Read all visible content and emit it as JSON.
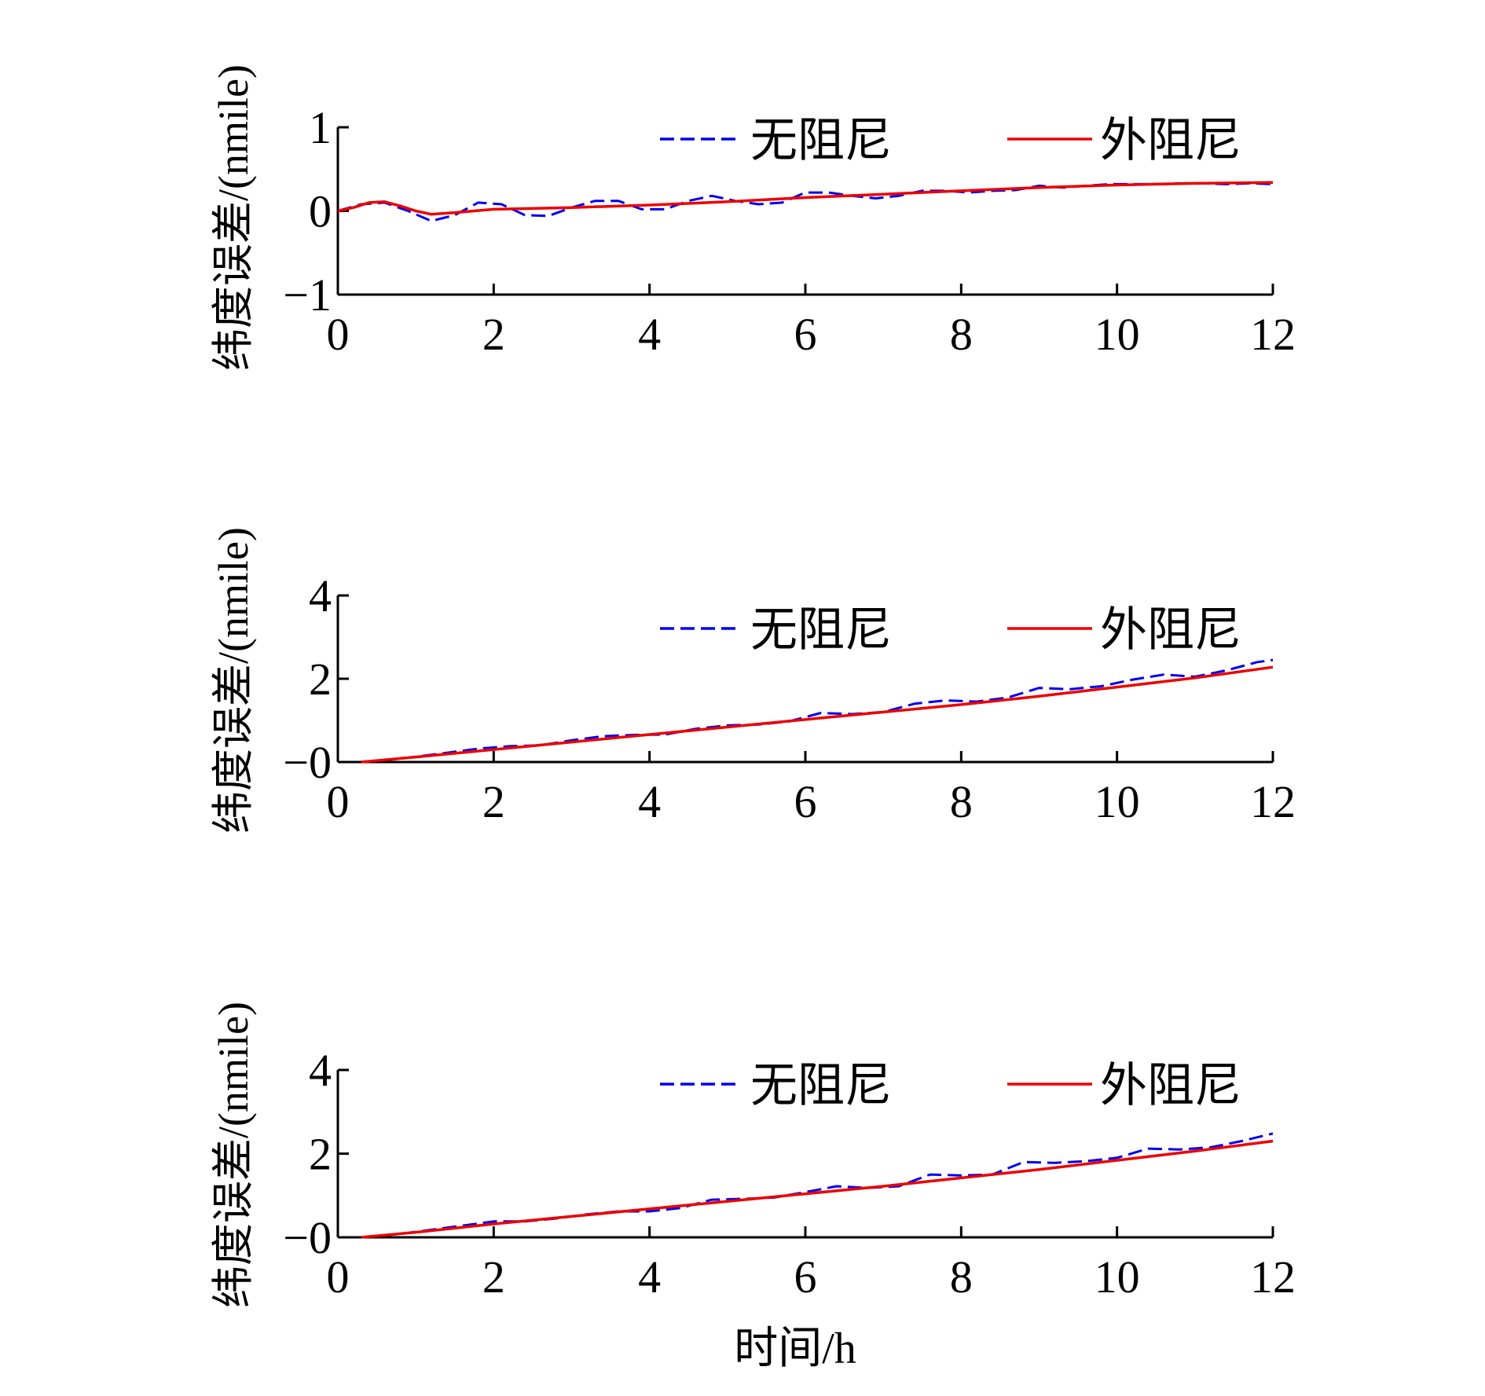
{
  "figure": {
    "xlabel": "时间/h"
  },
  "colors": {
    "damping_none": "#0000ee",
    "damping_outer": "#ee0000",
    "axis": "#000000"
  },
  "chart_data": [
    {
      "type": "line",
      "title": "",
      "xlabel": "",
      "ylabel": "纬度误差/(nmile)",
      "xlim": [
        0,
        12
      ],
      "ylim": [
        -1,
        1
      ],
      "xticks": [
        0,
        2,
        4,
        6,
        8,
        10,
        12
      ],
      "xtick_labels": [
        "0",
        "2",
        "4",
        "6",
        "8",
        "10",
        "12"
      ],
      "yticks": [
        -1,
        0,
        1
      ],
      "ytick_labels": [
        "−1",
        "0",
        "1"
      ],
      "legend": "top-right",
      "grid": false,
      "series": [
        {
          "name": "无阻尼",
          "style": "dashed",
          "x": [
            0,
            0.3,
            0.6,
            0.9,
            1.2,
            1.5,
            1.8,
            2.1,
            2.4,
            2.7,
            3.0,
            3.3,
            3.6,
            3.9,
            4.2,
            4.5,
            4.8,
            5.1,
            5.4,
            5.7,
            6.0,
            6.3,
            6.6,
            6.9,
            7.2,
            7.5,
            7.8,
            8.1,
            8.4,
            8.7,
            9.0,
            9.3,
            9.6,
            9.9,
            10.2,
            10.5,
            10.8,
            11.1,
            11.4,
            11.7,
            12.0
          ],
          "y": [
            0,
            0.08,
            0.1,
            0.0,
            -0.12,
            -0.05,
            0.1,
            0.08,
            -0.05,
            -0.06,
            0.04,
            0.12,
            0.12,
            0.02,
            0.02,
            0.12,
            0.18,
            0.12,
            0.08,
            0.1,
            0.22,
            0.22,
            0.18,
            0.15,
            0.18,
            0.24,
            0.24,
            0.22,
            0.24,
            0.25,
            0.3,
            0.28,
            0.3,
            0.32,
            0.32,
            0.32,
            0.33,
            0.33,
            0.32,
            0.33,
            0.32
          ]
        },
        {
          "name": "外阻尼",
          "style": "solid",
          "x": [
            0,
            0.2,
            0.4,
            0.6,
            0.8,
            1.0,
            1.2,
            1.5,
            2.0,
            3.0,
            4.0,
            5.0,
            6.0,
            7.0,
            8.0,
            9.0,
            10.0,
            11.0,
            12.0
          ],
          "y": [
            0,
            0.04,
            0.1,
            0.11,
            0.06,
            0.0,
            -0.04,
            -0.02,
            0.02,
            0.04,
            0.07,
            0.11,
            0.16,
            0.2,
            0.24,
            0.28,
            0.31,
            0.33,
            0.34
          ]
        }
      ]
    },
    {
      "type": "line",
      "title": "",
      "xlabel": "",
      "ylabel": "纬度误差/(nmile)",
      "xlim": [
        0,
        12
      ],
      "ylim": [
        0,
        4
      ],
      "xticks": [
        0,
        2,
        4,
        6,
        8,
        10,
        12
      ],
      "xtick_labels": [
        "0",
        "2",
        "4",
        "6",
        "8",
        "10",
        "12"
      ],
      "yticks": [
        0,
        2,
        4
      ],
      "ytick_labels": [
        "−0",
        "2",
        "4"
      ],
      "legend": "top-right",
      "grid": false,
      "series": [
        {
          "name": "无阻尼",
          "style": "dashed",
          "x": [
            0.3,
            0.8,
            1.4,
            1.8,
            2.2,
            2.6,
            3.0,
            3.4,
            3.8,
            4.2,
            4.6,
            5.0,
            5.4,
            5.8,
            6.2,
            6.6,
            7.0,
            7.4,
            7.8,
            8.2,
            8.6,
            9.0,
            9.4,
            9.8,
            10.2,
            10.6,
            11.0,
            11.4,
            11.8,
            12.0
          ],
          "y": [
            0.0,
            0.08,
            0.22,
            0.32,
            0.38,
            0.4,
            0.52,
            0.62,
            0.65,
            0.66,
            0.8,
            0.88,
            0.9,
            0.98,
            1.18,
            1.15,
            1.2,
            1.4,
            1.48,
            1.45,
            1.55,
            1.78,
            1.75,
            1.82,
            1.98,
            2.1,
            2.05,
            2.2,
            2.4,
            2.45
          ]
        },
        {
          "name": "外阻尼",
          "style": "solid",
          "x": [
            0.3,
            1.0,
            2.0,
            3.0,
            4.0,
            5.0,
            6.0,
            7.0,
            8.0,
            9.0,
            10.0,
            11.0,
            12.0
          ],
          "y": [
            0.0,
            0.12,
            0.3,
            0.48,
            0.66,
            0.84,
            1.02,
            1.2,
            1.38,
            1.58,
            1.8,
            2.02,
            2.28
          ]
        }
      ]
    },
    {
      "type": "line",
      "title": "",
      "xlabel": "时间/h",
      "ylabel": "纬度误差/(nmile)",
      "xlim": [
        0,
        12
      ],
      "ylim": [
        0,
        4
      ],
      "xticks": [
        0,
        2,
        4,
        6,
        8,
        10,
        12
      ],
      "xtick_labels": [
        "0",
        "2",
        "4",
        "6",
        "8",
        "10",
        "12"
      ],
      "yticks": [
        0,
        2,
        4
      ],
      "ytick_labels": [
        "−0",
        "2",
        "4"
      ],
      "legend": "top-right",
      "grid": false,
      "series": [
        {
          "name": "无阻尼",
          "style": "dashed",
          "x": [
            0.3,
            0.8,
            1.2,
            1.6,
            2.0,
            2.4,
            2.8,
            3.2,
            3.6,
            4.0,
            4.4,
            4.8,
            5.2,
            5.6,
            6.0,
            6.4,
            6.8,
            7.2,
            7.6,
            8.0,
            8.4,
            8.8,
            9.2,
            9.6,
            10.0,
            10.4,
            10.8,
            11.2,
            11.6,
            12.0
          ],
          "y": [
            0.0,
            0.08,
            0.18,
            0.28,
            0.38,
            0.38,
            0.45,
            0.55,
            0.62,
            0.62,
            0.7,
            0.9,
            0.92,
            0.95,
            1.08,
            1.22,
            1.18,
            1.22,
            1.5,
            1.48,
            1.5,
            1.8,
            1.78,
            1.82,
            1.9,
            2.12,
            2.1,
            2.15,
            2.3,
            2.48
          ]
        },
        {
          "name": "外阻尼",
          "style": "solid",
          "x": [
            0.3,
            1.0,
            2.0,
            3.0,
            4.0,
            5.0,
            6.0,
            7.0,
            8.0,
            9.0,
            10.0,
            11.0,
            12.0
          ],
          "y": [
            0.0,
            0.12,
            0.32,
            0.5,
            0.68,
            0.86,
            1.04,
            1.22,
            1.42,
            1.62,
            1.84,
            2.06,
            2.3
          ]
        }
      ]
    }
  ]
}
